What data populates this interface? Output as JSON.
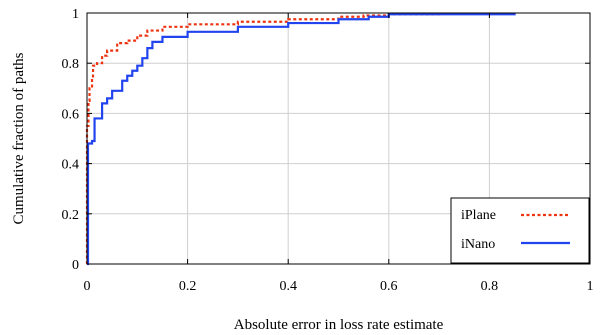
{
  "chart_data": {
    "type": "line",
    "title": "",
    "xlabel": "Absolute error in loss rate estimate",
    "ylabel": "Cumulative fraction of paths",
    "xlim": [
      0,
      1
    ],
    "ylim": [
      0,
      1
    ],
    "x_ticks": [
      "0",
      "0.2",
      "0.4",
      "0.6",
      "0.8",
      "1"
    ],
    "y_ticks": [
      "0",
      "0.2",
      "0.4",
      "0.6",
      "0.8",
      "1"
    ],
    "grid": true,
    "legend_position": "bottom-right",
    "series": [
      {
        "name": "iPlane",
        "color": "#ee3311",
        "style": "dashed",
        "points": [
          [
            0,
            0
          ],
          [
            0.0,
            0.55
          ],
          [
            0.003,
            0.65
          ],
          [
            0.005,
            0.7
          ],
          [
            0.01,
            0.74
          ],
          [
            0.012,
            0.79
          ],
          [
            0.02,
            0.8
          ],
          [
            0.03,
            0.83
          ],
          [
            0.04,
            0.85
          ],
          [
            0.06,
            0.88
          ],
          [
            0.08,
            0.89
          ],
          [
            0.1,
            0.91
          ],
          [
            0.12,
            0.93
          ],
          [
            0.15,
            0.945
          ],
          [
            0.2,
            0.955
          ],
          [
            0.3,
            0.965
          ],
          [
            0.4,
            0.975
          ],
          [
            0.5,
            0.985
          ],
          [
            0.55,
            0.99
          ],
          [
            0.6,
            0.995
          ],
          [
            0.7,
            1.0
          ]
        ]
      },
      {
        "name": "iNano",
        "color": "#2244ee",
        "style": "solid",
        "points": [
          [
            0,
            0
          ],
          [
            0.002,
            0.48
          ],
          [
            0.01,
            0.49
          ],
          [
            0.015,
            0.58
          ],
          [
            0.025,
            0.58
          ],
          [
            0.03,
            0.64
          ],
          [
            0.04,
            0.66
          ],
          [
            0.05,
            0.69
          ],
          [
            0.07,
            0.73
          ],
          [
            0.08,
            0.75
          ],
          [
            0.09,
            0.77
          ],
          [
            0.1,
            0.79
          ],
          [
            0.11,
            0.82
          ],
          [
            0.12,
            0.86
          ],
          [
            0.13,
            0.885
          ],
          [
            0.15,
            0.905
          ],
          [
            0.2,
            0.925
          ],
          [
            0.3,
            0.945
          ],
          [
            0.4,
            0.96
          ],
          [
            0.5,
            0.975
          ],
          [
            0.56,
            0.985
          ],
          [
            0.6,
            0.995
          ],
          [
            0.85,
            1.0
          ]
        ]
      }
    ]
  }
}
